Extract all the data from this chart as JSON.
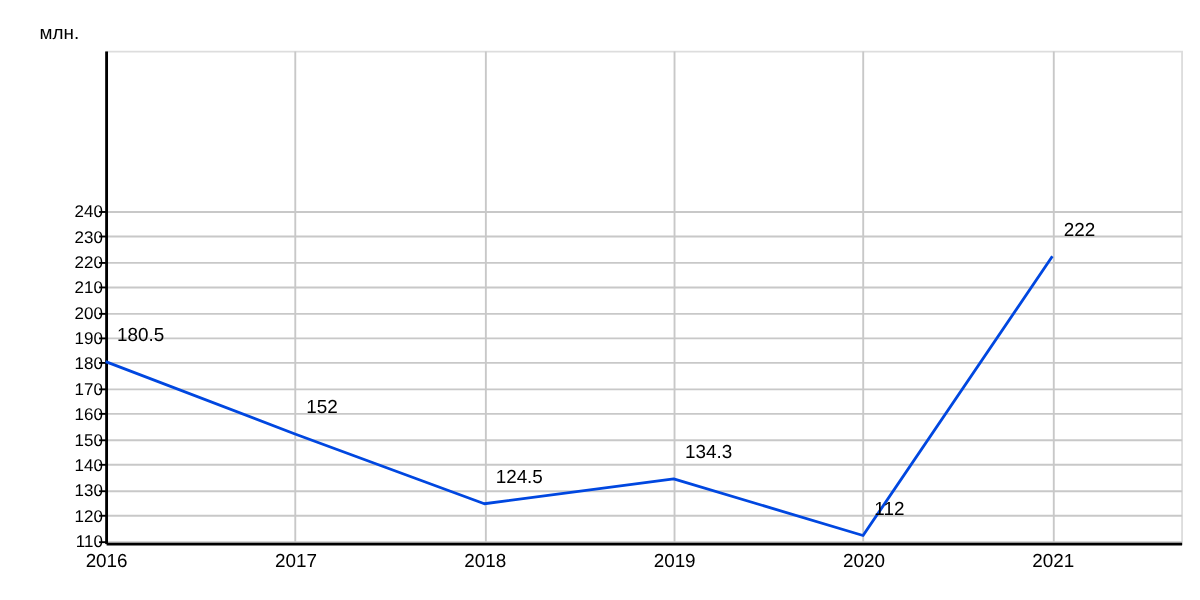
{
  "chart_data": {
    "type": "line",
    "ylabel": "млн.",
    "x": [
      2016,
      2017,
      2018,
      2019,
      2020,
      2021
    ],
    "series": [
      {
        "color": "#0047e0",
        "values": [
          180.5,
          152,
          124.5,
          134.3,
          112,
          222
        ]
      }
    ],
    "xlim": [
      2016,
      2021.68
    ],
    "xticks": [
      2016,
      2017,
      2018,
      2019,
      2020,
      2021
    ],
    "ylim": [
      109,
      303
    ],
    "yticks": [
      110,
      120,
      130,
      140,
      150,
      160,
      170,
      180,
      190,
      200,
      210,
      220,
      230,
      240
    ],
    "grid": true,
    "data_labels": true,
    "marker": "none",
    "line_style": "solid"
  }
}
